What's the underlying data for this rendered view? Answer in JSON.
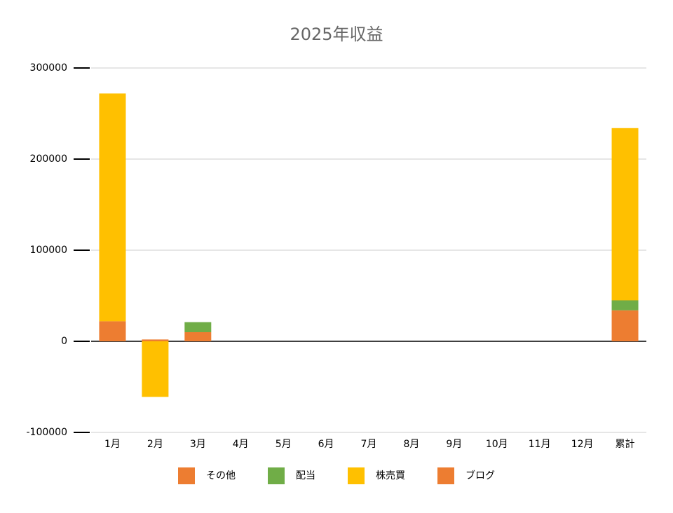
{
  "chart_data": {
    "type": "bar",
    "stacked": true,
    "title": "2025年収益",
    "categories": [
      "1月",
      "2月",
      "3月",
      "4月",
      "5月",
      "6月",
      "7月",
      "8月",
      "9月",
      "10月",
      "11月",
      "12月",
      "累計"
    ],
    "series": [
      {
        "name": "その他",
        "color": "#ed7d31",
        "values": [
          22000,
          2000,
          10000,
          null,
          null,
          null,
          null,
          null,
          null,
          null,
          null,
          null,
          34000
        ]
      },
      {
        "name": "配当",
        "color": "#70ad47",
        "values": [
          null,
          null,
          11000,
          null,
          null,
          null,
          null,
          null,
          null,
          null,
          null,
          null,
          11000
        ]
      },
      {
        "name": "株売買",
        "color": "#ffc000",
        "values": [
          250000,
          -61000,
          null,
          null,
          null,
          null,
          null,
          null,
          null,
          null,
          null,
          null,
          189000
        ]
      },
      {
        "name": "ブログ",
        "color": "#ed7d31",
        "values": [
          null,
          null,
          null,
          null,
          null,
          null,
          null,
          null,
          null,
          null,
          null,
          null,
          null
        ]
      }
    ],
    "ylim": [
      -100000,
      300000
    ],
    "yticks": [
      -100000,
      0,
      100000,
      200000,
      300000
    ],
    "grid": true
  }
}
